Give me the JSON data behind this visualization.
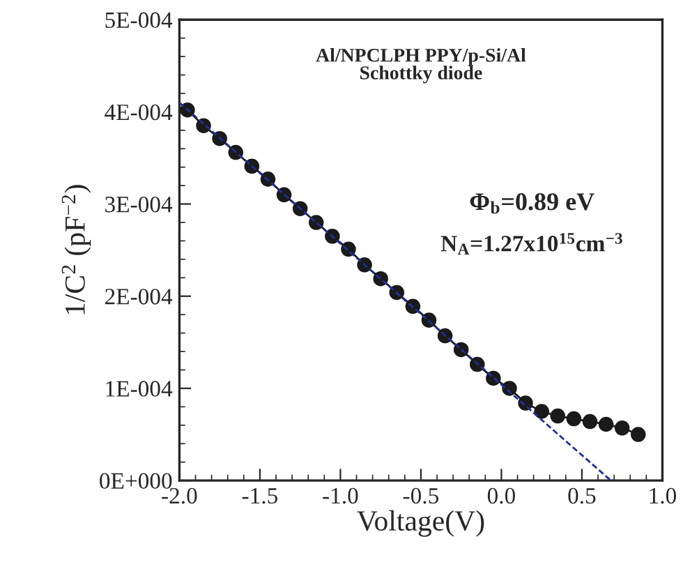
{
  "chart_data": {
    "type": "line",
    "xlabel": "Voltage(V)",
    "ylabel": "1/C$^{2}$ (pF$^{−2}$)",
    "annotations": [
      "Al/NPCLPH PPY/p-Si/Al\nSchottky diode",
      "Φ$_{b}$=0.89 eV",
      "N$_{A}$=1.27x10$^{15}$cm$^{−3}$"
    ],
    "x": [
      -1.95,
      -1.85,
      -1.75,
      -1.65,
      -1.55,
      -1.45,
      -1.35,
      -1.25,
      -1.15,
      -1.05,
      -0.95,
      -0.85,
      -0.75,
      -0.65,
      -0.55,
      -0.45,
      -0.35,
      -0.25,
      -0.15,
      -0.05,
      0.05,
      0.15,
      0.25,
      0.35,
      0.45,
      0.55,
      0.65,
      0.75,
      0.85
    ],
    "series": [
      {
        "color": "#1a1a1a",
        "marker": "circle",
        "line_style": "solid",
        "values": [
          0.000402,
          0.000385,
          0.000371,
          0.000356,
          0.000341,
          0.000327,
          0.00031,
          0.000295,
          0.00028,
          0.000265,
          0.000251,
          0.000234,
          0.000219,
          0.000204,
          0.000189,
          0.000174,
          0.000157,
          0.000142,
          0.000126,
          0.000111,
          0.0001,
          8.4e-05,
          7.5e-05,
          7e-05,
          6.7e-05,
          6.4e-05,
          6.1e-05,
          5.7e-05,
          5e-05
        ]
      },
      {
        "type": "line",
        "color": "#1f2f9a",
        "line_style": "dashed",
        "marker": "none",
        "x": [
          -2.0,
          0.68
        ],
        "values": [
          0.00041,
          0.0
        ]
      }
    ],
    "xlim": [
      -2.0,
      1.0
    ],
    "ylim": [
      0,
      0.0005
    ],
    "xticks": [
      {
        "value": -2,
        "label": "-2.0"
      },
      -1.5,
      {
        "value": -1,
        "label": "-1.0"
      },
      -0.5,
      {
        "value": 0,
        "label": "0.0"
      },
      0.5,
      {
        "value": 1,
        "label": "1.0"
      }
    ],
    "yticks": [
      {
        "value": 0,
        "label": "0E+000"
      },
      {
        "value": 0.0001,
        "label": "1E-004"
      },
      {
        "value": 0.0002,
        "label": "2E-004"
      },
      {
        "value": 0.0003,
        "label": "3E-004"
      },
      {
        "value": 0.0004,
        "label": "4E-004"
      },
      {
        "value": 0.0005,
        "label": "5E-004"
      }
    ],
    "grid": false,
    "legend": false
  }
}
